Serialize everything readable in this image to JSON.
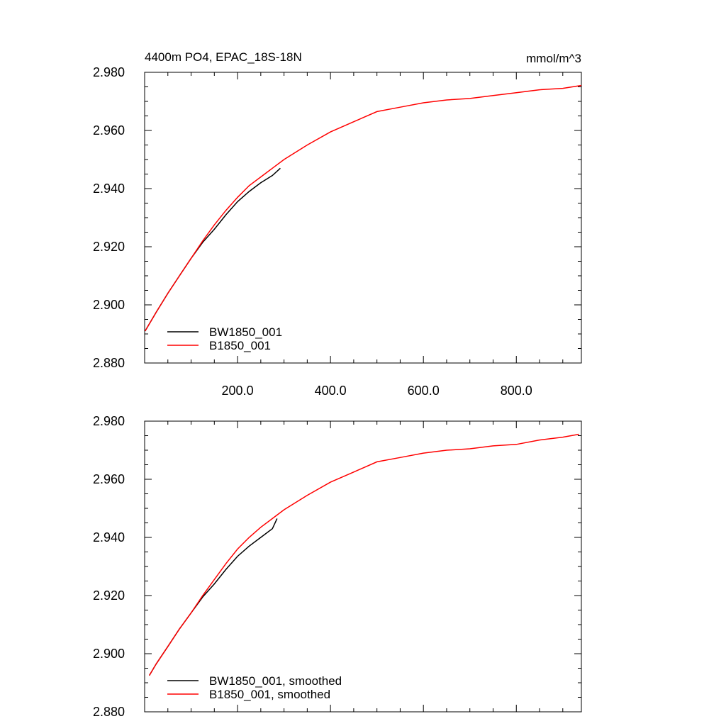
{
  "chart_data": [
    {
      "type": "line",
      "title_left": "4400m PO4, EPAC_18S-18N",
      "title_right": "mmol/m^3",
      "xlim": [
        0,
        940
      ],
      "ylim": [
        2.88,
        2.98
      ],
      "x_ticks": [
        200,
        400,
        600,
        800
      ],
      "x_tick_labels": [
        "200.0",
        "400.0",
        "600.0",
        "800.0"
      ],
      "y_ticks": [
        2.88,
        2.9,
        2.92,
        2.94,
        2.96,
        2.98
      ],
      "y_tick_labels": [
        "2.880",
        "2.900",
        "2.920",
        "2.940",
        "2.960",
        "2.980"
      ],
      "legend_position": "bottom-left",
      "series": [
        {
          "name": "BW1850_001",
          "color": "#000000",
          "x": [
            1,
            25,
            50,
            75,
            100,
            125,
            150,
            175,
            200,
            225,
            250,
            275,
            292
          ],
          "y": [
            2.891,
            2.8975,
            2.904,
            2.91,
            2.916,
            2.9215,
            2.926,
            2.931,
            2.9355,
            2.939,
            2.942,
            2.9445,
            2.947
          ]
        },
        {
          "name": "B1850_001",
          "color": "#ff0000",
          "x": [
            1,
            25,
            50,
            75,
            100,
            125,
            150,
            175,
            200,
            225,
            250,
            275,
            300,
            350,
            400,
            450,
            500,
            550,
            600,
            650,
            700,
            750,
            800,
            850,
            900,
            940
          ],
          "y": [
            2.891,
            2.8975,
            2.904,
            2.91,
            2.916,
            2.922,
            2.9275,
            2.9325,
            2.937,
            2.941,
            2.944,
            2.947,
            2.95,
            2.955,
            2.9595,
            2.963,
            2.9665,
            2.968,
            2.9695,
            2.9705,
            2.971,
            2.972,
            2.973,
            2.974,
            2.9745,
            2.9755
          ]
        }
      ]
    },
    {
      "type": "line",
      "xlim": [
        0,
        940
      ],
      "ylim": [
        2.88,
        2.98
      ],
      "x_ticks": [
        200,
        400,
        600,
        800
      ],
      "y_ticks": [
        2.88,
        2.9,
        2.92,
        2.94,
        2.96,
        2.98
      ],
      "y_tick_labels": [
        "2.880",
        "2.900",
        "2.920",
        "2.940",
        "2.960",
        "2.980"
      ],
      "legend_position": "bottom-left",
      "series": [
        {
          "name": "BW1850_001, smoothed",
          "color": "#000000",
          "x": [
            10,
            25,
            50,
            75,
            100,
            125,
            150,
            175,
            200,
            225,
            250,
            275,
            285
          ],
          "y": [
            2.8925,
            2.8965,
            2.9025,
            2.9085,
            2.914,
            2.9195,
            2.924,
            2.929,
            2.9335,
            2.937,
            2.94,
            2.943,
            2.9465
          ]
        },
        {
          "name": "B1850_001, smoothed",
          "color": "#ff0000",
          "x": [
            10,
            25,
            50,
            75,
            100,
            125,
            150,
            175,
            200,
            225,
            250,
            275,
            300,
            350,
            400,
            450,
            500,
            550,
            600,
            650,
            700,
            750,
            800,
            850,
            900,
            935
          ],
          "y": [
            2.8925,
            2.8965,
            2.9025,
            2.9085,
            2.914,
            2.92,
            2.9255,
            2.931,
            2.936,
            2.94,
            2.9435,
            2.9465,
            2.9495,
            2.9545,
            2.959,
            2.9625,
            2.966,
            2.9675,
            2.969,
            2.97,
            2.9705,
            2.9715,
            2.972,
            2.9735,
            2.9745,
            2.9755
          ]
        }
      ]
    }
  ]
}
